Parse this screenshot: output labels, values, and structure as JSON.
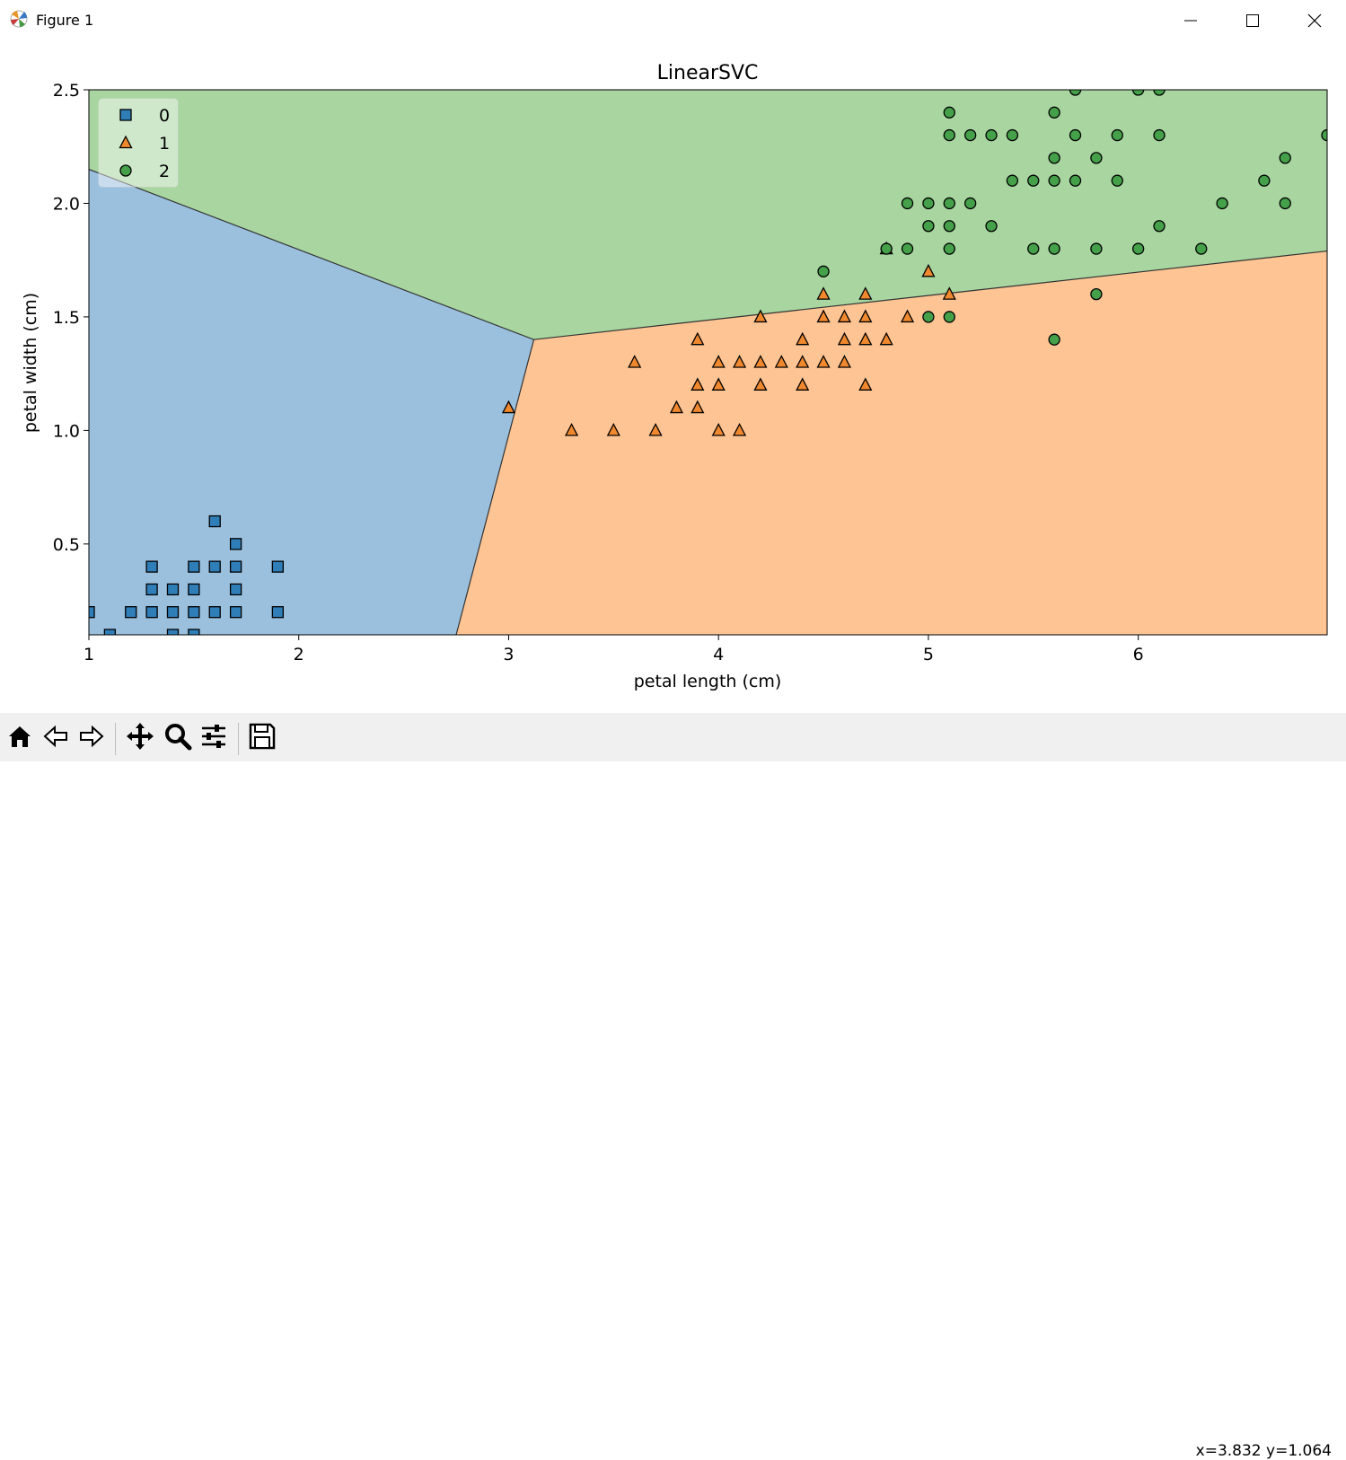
{
  "window": {
    "title": "Figure 1"
  },
  "toolbar": {
    "buttons": [
      {
        "name": "home-icon"
      },
      {
        "name": "back-icon"
      },
      {
        "name": "forward-icon"
      },
      {
        "name": "pan-icon"
      },
      {
        "name": "zoom-icon"
      },
      {
        "name": "configure-subplots-icon"
      },
      {
        "name": "save-icon"
      }
    ],
    "coords": "x=3.832 y=1.064"
  },
  "chart_data": {
    "type": "scatter",
    "title": "LinearSVC",
    "xlabel": "petal length (cm)",
    "ylabel": "petal width (cm)",
    "xlim": [
      1.0,
      6.9
    ],
    "ylim": [
      0.1,
      2.5
    ],
    "xticks": [
      1,
      2,
      3,
      4,
      5,
      6
    ],
    "yticks": [
      0.5,
      1.0,
      1.5,
      2.0,
      2.5
    ],
    "ytick_labels": [
      "0.5",
      "1.0",
      "1.5",
      "2.0",
      "2.5"
    ],
    "grid": false,
    "legend_position": "top-left",
    "regions": [
      {
        "class": "0",
        "color": "#9bc0de",
        "polygon": [
          [
            1.0,
            0.1
          ],
          [
            1.0,
            2.15
          ],
          [
            3.12,
            1.4
          ],
          [
            2.75,
            0.1
          ]
        ]
      },
      {
        "class": "1",
        "color": "#ffc493",
        "polygon": [
          [
            2.75,
            0.1
          ],
          [
            3.12,
            1.4
          ],
          [
            6.9,
            1.79
          ],
          [
            6.9,
            0.1
          ]
        ]
      },
      {
        "class": "2",
        "color": "#a8d5a0",
        "polygon": [
          [
            1.0,
            2.15
          ],
          [
            1.0,
            2.5
          ],
          [
            6.9,
            2.5
          ],
          [
            6.9,
            1.79
          ],
          [
            3.12,
            1.4
          ]
        ]
      }
    ],
    "series": [
      {
        "name": "0",
        "marker": "square",
        "color": "#2f7eb8",
        "points": [
          [
            1.0,
            0.2
          ],
          [
            1.1,
            0.1
          ],
          [
            1.2,
            0.2
          ],
          [
            1.3,
            0.2
          ],
          [
            1.3,
            0.3
          ],
          [
            1.3,
            0.4
          ],
          [
            1.4,
            0.1
          ],
          [
            1.4,
            0.2
          ],
          [
            1.4,
            0.3
          ],
          [
            1.5,
            0.1
          ],
          [
            1.5,
            0.2
          ],
          [
            1.5,
            0.3
          ],
          [
            1.5,
            0.4
          ],
          [
            1.6,
            0.2
          ],
          [
            1.6,
            0.4
          ],
          [
            1.6,
            0.6
          ],
          [
            1.7,
            0.2
          ],
          [
            1.7,
            0.3
          ],
          [
            1.7,
            0.4
          ],
          [
            1.7,
            0.5
          ],
          [
            1.9,
            0.2
          ],
          [
            1.9,
            0.4
          ]
        ]
      },
      {
        "name": "1",
        "marker": "triangle",
        "color": "#f0882e",
        "points": [
          [
            3.0,
            1.1
          ],
          [
            3.3,
            1.0
          ],
          [
            3.5,
            1.0
          ],
          [
            3.6,
            1.3
          ],
          [
            3.7,
            1.0
          ],
          [
            3.8,
            1.1
          ],
          [
            3.9,
            1.1
          ],
          [
            3.9,
            1.2
          ],
          [
            3.9,
            1.4
          ],
          [
            4.0,
            1.0
          ],
          [
            4.0,
            1.2
          ],
          [
            4.0,
            1.3
          ],
          [
            4.1,
            1.0
          ],
          [
            4.1,
            1.3
          ],
          [
            4.2,
            1.2
          ],
          [
            4.2,
            1.3
          ],
          [
            4.2,
            1.5
          ],
          [
            4.3,
            1.3
          ],
          [
            4.4,
            1.2
          ],
          [
            4.4,
            1.3
          ],
          [
            4.4,
            1.4
          ],
          [
            4.5,
            1.3
          ],
          [
            4.5,
            1.5
          ],
          [
            4.5,
            1.6
          ],
          [
            4.6,
            1.3
          ],
          [
            4.6,
            1.4
          ],
          [
            4.6,
            1.5
          ],
          [
            4.7,
            1.2
          ],
          [
            4.7,
            1.4
          ],
          [
            4.7,
            1.5
          ],
          [
            4.7,
            1.6
          ],
          [
            4.8,
            1.4
          ],
          [
            4.8,
            1.8
          ],
          [
            4.9,
            1.5
          ],
          [
            5.0,
            1.7
          ],
          [
            5.1,
            1.6
          ]
        ]
      },
      {
        "name": "2",
        "marker": "circle",
        "color": "#45a04a",
        "points": [
          [
            4.5,
            1.7
          ],
          [
            4.8,
            1.8
          ],
          [
            4.9,
            1.8
          ],
          [
            4.9,
            2.0
          ],
          [
            5.0,
            1.5
          ],
          [
            5.0,
            1.9
          ],
          [
            5.0,
            2.0
          ],
          [
            5.1,
            1.5
          ],
          [
            5.1,
            1.8
          ],
          [
            5.1,
            1.9
          ],
          [
            5.1,
            2.0
          ],
          [
            5.1,
            2.3
          ],
          [
            5.1,
            2.4
          ],
          [
            5.2,
            2.0
          ],
          [
            5.2,
            2.3
          ],
          [
            5.3,
            1.9
          ],
          [
            5.3,
            2.3
          ],
          [
            5.4,
            2.1
          ],
          [
            5.4,
            2.3
          ],
          [
            5.5,
            1.8
          ],
          [
            5.5,
            2.1
          ],
          [
            5.6,
            1.4
          ],
          [
            5.6,
            1.8
          ],
          [
            5.6,
            2.1
          ],
          [
            5.6,
            2.2
          ],
          [
            5.6,
            2.4
          ],
          [
            5.7,
            2.1
          ],
          [
            5.7,
            2.3
          ],
          [
            5.7,
            2.5
          ],
          [
            5.8,
            1.6
          ],
          [
            5.8,
            1.8
          ],
          [
            5.8,
            2.2
          ],
          [
            5.9,
            2.1
          ],
          [
            5.9,
            2.3
          ],
          [
            6.0,
            1.8
          ],
          [
            6.0,
            2.5
          ],
          [
            6.1,
            1.9
          ],
          [
            6.1,
            2.3
          ],
          [
            6.1,
            2.5
          ],
          [
            6.3,
            1.8
          ],
          [
            6.4,
            2.0
          ],
          [
            6.6,
            2.1
          ],
          [
            6.7,
            2.0
          ],
          [
            6.7,
            2.2
          ],
          [
            6.9,
            2.3
          ]
        ]
      }
    ]
  }
}
